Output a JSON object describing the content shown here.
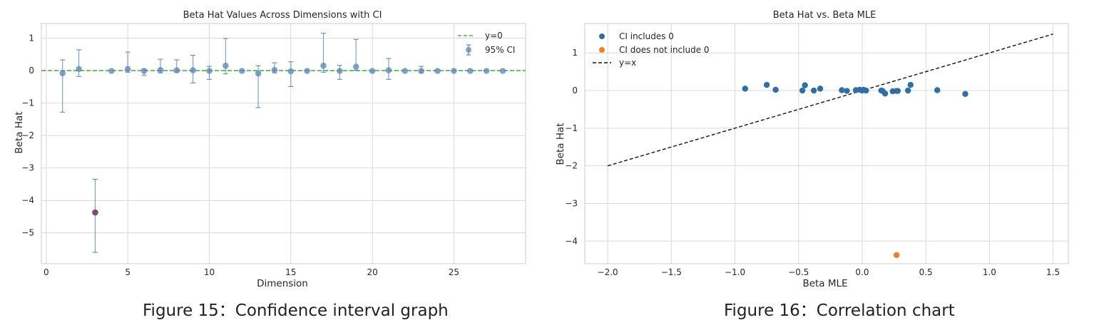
{
  "chart_data": [
    {
      "type": "scatter",
      "title": "Beta Hat Values Across Dimensions with CI",
      "xlabel": "Dimension",
      "ylabel": "Beta Hat",
      "xlim": [
        -0.3,
        29.4
      ],
      "ylim": [
        -5.95,
        1.45
      ],
      "xticks": [
        0,
        5,
        10,
        15,
        20,
        25
      ],
      "yticks": [
        1,
        0,
        -1,
        -2,
        -3,
        -4,
        -5
      ],
      "grid": true,
      "legend_position": "top-right",
      "legend": [
        "y=0",
        "95% CI"
      ],
      "reference_line": {
        "label": "y=0",
        "y": 0,
        "color": "#4daf4a",
        "style": "dashed"
      },
      "point_color": "#5e88ba",
      "highlight_color": "#7b3f74",
      "series": [
        {
          "name": "95% CI",
          "points": [
            {
              "x": 1,
              "y": -0.08,
              "lo": -1.28,
              "hi": 0.33
            },
            {
              "x": 2,
              "y": 0.05,
              "lo": -0.18,
              "hi": 0.64
            },
            {
              "x": 3,
              "y": -4.37,
              "lo": -5.6,
              "hi": -3.35,
              "highlight": true
            },
            {
              "x": 4,
              "y": -0.01,
              "lo": -0.01,
              "hi": -0.01
            },
            {
              "x": 5,
              "y": 0.05,
              "lo": -0.05,
              "hi": 0.57
            },
            {
              "x": 6,
              "y": -0.01,
              "lo": -0.15,
              "hi": 0.05
            },
            {
              "x": 7,
              "y": 0.02,
              "lo": -0.07,
              "hi": 0.35
            },
            {
              "x": 8,
              "y": 0.01,
              "lo": -0.05,
              "hi": 0.33
            },
            {
              "x": 9,
              "y": 0.01,
              "lo": -0.38,
              "hi": 0.47
            },
            {
              "x": 10,
              "y": -0.01,
              "lo": -0.27,
              "hi": 0.13
            },
            {
              "x": 11,
              "y": 0.15,
              "lo": -0.1,
              "hi": 0.99
            },
            {
              "x": 12,
              "y": -0.01,
              "lo": -0.01,
              "hi": -0.01
            },
            {
              "x": 13,
              "y": -0.09,
              "lo": -1.14,
              "hi": 0.15
            },
            {
              "x": 14,
              "y": 0.02,
              "lo": -0.07,
              "hi": 0.24
            },
            {
              "x": 15,
              "y": -0.02,
              "lo": -0.49,
              "hi": 0.27
            },
            {
              "x": 16,
              "y": -0.01,
              "lo": -0.01,
              "hi": -0.01
            },
            {
              "x": 17,
              "y": 0.15,
              "lo": -0.05,
              "hi": 1.15
            },
            {
              "x": 18,
              "y": -0.01,
              "lo": -0.27,
              "hi": 0.16
            },
            {
              "x": 19,
              "y": 0.12,
              "lo": 0.01,
              "hi": 0.96
            },
            {
              "x": 20,
              "y": -0.01,
              "lo": -0.01,
              "hi": -0.01
            },
            {
              "x": 21,
              "y": 0.01,
              "lo": -0.27,
              "hi": 0.37
            },
            {
              "x": 22,
              "y": -0.01,
              "lo": -0.01,
              "hi": -0.01
            },
            {
              "x": 23,
              "y": -0.01,
              "lo": -0.07,
              "hi": 0.13
            },
            {
              "x": 24,
              "y": -0.01,
              "lo": -0.01,
              "hi": -0.01
            },
            {
              "x": 25,
              "y": -0.01,
              "lo": -0.01,
              "hi": -0.01
            },
            {
              "x": 26,
              "y": -0.01,
              "lo": -0.01,
              "hi": -0.01
            },
            {
              "x": 27,
              "y": -0.01,
              "lo": -0.01,
              "hi": -0.01
            },
            {
              "x": 28,
              "y": -0.01,
              "lo": -0.01,
              "hi": -0.01
            }
          ]
        }
      ]
    },
    {
      "type": "scatter",
      "title": "Beta Hat vs. Beta MLE",
      "xlabel": "Beta MLE",
      "ylabel": "Beta Hat",
      "xlim": [
        -2.18,
        1.62
      ],
      "ylim": [
        -4.6,
        1.78
      ],
      "xticks": [
        -2.0,
        -1.5,
        -1.0,
        -0.5,
        0.0,
        0.5,
        1.0,
        1.5
      ],
      "yticks": [
        1,
        0,
        -1,
        -2,
        -3,
        -4
      ],
      "grid": true,
      "legend_position": "top-left",
      "legend": [
        "CI includes 0",
        "CI does not include 0",
        "y=x"
      ],
      "reference_line": {
        "label": "y=x",
        "from": [
          -2.0,
          -2.0
        ],
        "to": [
          1.5,
          1.5
        ],
        "color": "#111111",
        "style": "dashed"
      },
      "series": [
        {
          "name": "CI includes 0",
          "color": "#2f6fa8",
          "points": [
            [
              -0.92,
              0.05
            ],
            [
              -0.75,
              0.15
            ],
            [
              -0.68,
              0.02
            ],
            [
              -0.47,
              0.0
            ],
            [
              -0.45,
              0.14
            ],
            [
              -0.38,
              0.0
            ],
            [
              -0.33,
              0.05
            ],
            [
              -0.16,
              0.01
            ],
            [
              -0.12,
              -0.01
            ],
            [
              -0.05,
              0.01
            ],
            [
              -0.02,
              0.02
            ],
            [
              0.0,
              0.0
            ],
            [
              0.01,
              0.02
            ],
            [
              0.03,
              0.0
            ],
            [
              0.15,
              0.0
            ],
            [
              0.16,
              -0.01
            ],
            [
              0.18,
              -0.08
            ],
            [
              0.24,
              -0.02
            ],
            [
              0.27,
              -0.01
            ],
            [
              0.28,
              -0.01
            ],
            [
              0.36,
              0.0
            ],
            [
              0.38,
              0.15
            ],
            [
              0.59,
              0.01
            ],
            [
              0.81,
              -0.09
            ]
          ]
        },
        {
          "name": "CI does not include 0",
          "color": "#f07f25",
          "points": [
            [
              0.27,
              -4.37
            ]
          ]
        }
      ]
    }
  ],
  "captions": [
    "Figure 15：Confidence interval graph",
    "Figure 16：Correlation chart"
  ]
}
